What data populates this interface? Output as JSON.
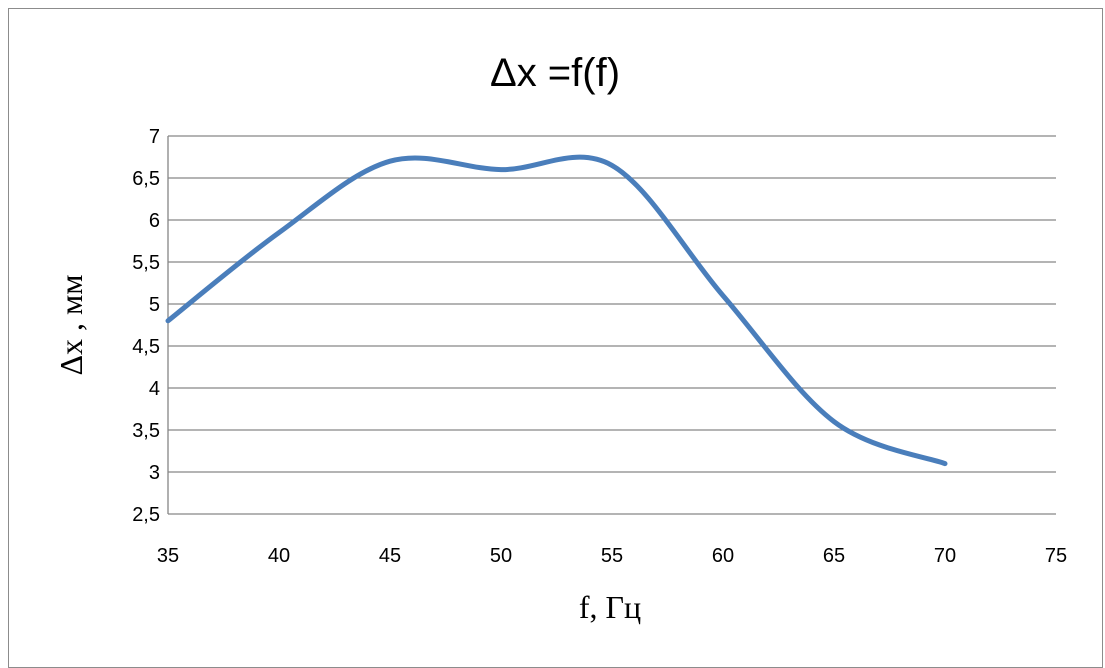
{
  "chart_data": {
    "type": "line",
    "title": "Δx =f(f)",
    "xlabel": "f, Гц",
    "ylabel": "Δx , мм",
    "xlim": [
      35,
      75
    ],
    "ylim": [
      2.5,
      7
    ],
    "x_ticks": [
      "35",
      "40",
      "45",
      "50",
      "55",
      "60",
      "65",
      "70",
      "75"
    ],
    "y_ticks": [
      "7",
      "6,5",
      "6",
      "5,5",
      "5",
      "4,5",
      "4",
      "3,5",
      "3",
      "2,5"
    ],
    "grid": "horizontal",
    "legend": "none",
    "series": [
      {
        "color": "#4a7ebb",
        "smooth": true,
        "x": [
          35,
          40,
          45,
          50,
          55,
          60,
          65,
          70
        ],
        "y": [
          4.8,
          5.85,
          6.7,
          6.6,
          6.65,
          5.1,
          3.6,
          3.1
        ]
      }
    ]
  }
}
